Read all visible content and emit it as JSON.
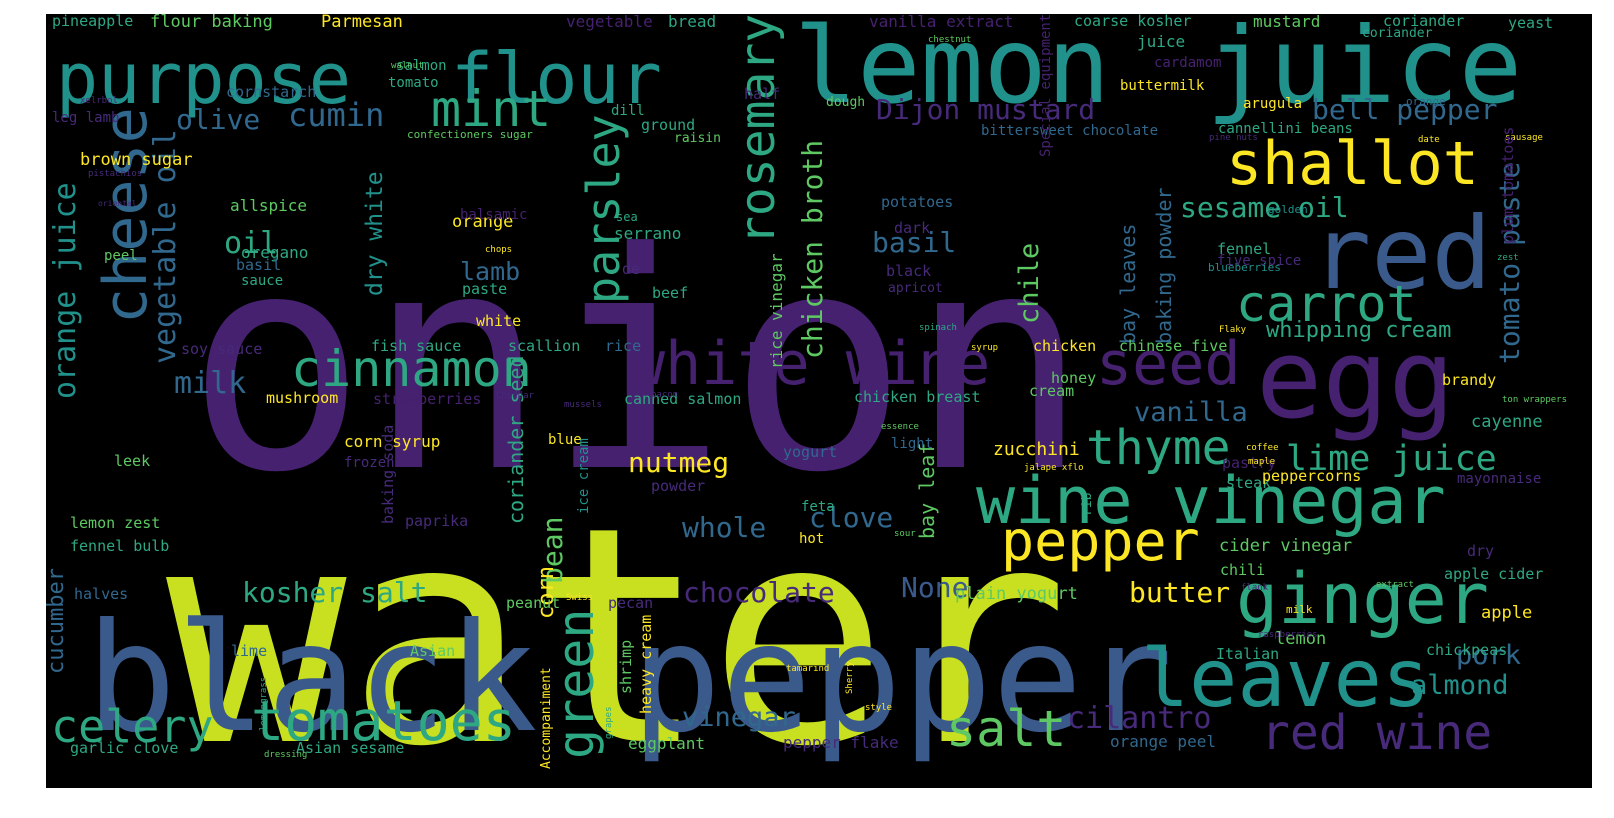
{
  "palette": {
    "background": "#000000",
    "purple": "#46216f",
    "violet": "#472a7a",
    "blue": "#3b5a8c",
    "teal_blue": "#31688e",
    "teal": "#21918c",
    "green_teal": "#2ea883",
    "green": "#5ec962",
    "lime": "#c8e020",
    "yellow": "#fde725"
  },
  "words": [
    "onion",
    "water",
    "black",
    "pepper",
    "lemon",
    "juice",
    "purpose",
    "flour",
    "red",
    "egg",
    "shallot",
    "leaves",
    "ginger",
    "wine vinegar",
    "white wine",
    "seed",
    "cheese",
    "carrot",
    "rosemary",
    "parsley",
    "mint",
    "cinnamon",
    "tomatoes",
    "celery",
    "green",
    "pepper",
    "salt",
    "red wine",
    "thyme",
    "lime juice",
    "orange juice",
    "vegetable oil",
    "chicken broth",
    "sesame oil",
    "tomato paste",
    "bell pepper",
    "Dijon mustard",
    "cumin",
    "olive",
    "oil",
    "milk",
    "basil",
    "lamb",
    "dry white",
    "chile",
    "kosher salt",
    "chocolate",
    "None",
    "butter",
    "clove",
    "whole",
    "nutmeg",
    "bean",
    "corn",
    "coriander seed",
    "cucumber",
    "vinegar",
    "cilantro",
    "almond",
    "pork",
    "vanilla",
    "whipping cream",
    "baking powder",
    "bay leaves",
    "rice vinegar",
    "bay leaf",
    "zucchini",
    "cider vinegar",
    "plain yogurt",
    "lemon",
    "apple",
    "cayenne",
    "brown sugar",
    "allspice",
    "oregano",
    "orange",
    "serrano",
    "potatoes",
    "dark",
    "fennel",
    "five spice",
    "corn syrup",
    "leek",
    "frozen",
    "lemon zest",
    "fennel bulb",
    "halves",
    "lime",
    "garlic clove",
    "Asian",
    "Asian sesame",
    "eggplant",
    "pepper flake",
    "orange peel",
    "fish sauce",
    "scallion",
    "soy sauce",
    "mushroom",
    "strawberries",
    "canned salmon",
    "chicken breast",
    "honey",
    "cream",
    "chicken",
    "chinese five",
    "rice",
    "white",
    "beef",
    "paste",
    "de",
    "black",
    "apricot",
    "basil",
    "powder",
    "feta",
    "yogurt",
    "light",
    "blue",
    "hot",
    "ice cream",
    "pecan",
    "peanut",
    "shrimp",
    "heavy cream",
    "Accompaniment",
    "chickpeas",
    "Italian",
    "apple cider",
    "chili",
    "dry",
    "steak",
    "pastry",
    "peppercorns",
    "mayonnaise",
    "brandy",
    "pineapple",
    "flour baking",
    "Parmesan",
    "vegetable",
    "bread",
    "vanilla extract",
    "coarse kosher",
    "mustard",
    "coriander",
    "yeast",
    "juice",
    "cardamom",
    "buttermilk",
    "salmon",
    "tomato",
    "half",
    "cornstarch",
    "dill",
    "ground",
    "raisin",
    "arugula",
    "cannellini beans",
    "bittersweet chocolate",
    "dough",
    "confectioners sugar",
    "leg lamb",
    "walnut",
    "chestnut",
    "xelrbol",
    "pistachios",
    "oriental",
    "peel",
    "sauce",
    "balsamic",
    "sea",
    "chops",
    "Special equipment",
    "blueberries",
    "golden",
    "pine nuts",
    "date",
    "sausage",
    "spinach",
    "syrup",
    "Flaky",
    "plum tomatoes",
    "zest",
    "ton wrappers",
    "coffee",
    "maple",
    "jalape xflo",
    "essence",
    "Cheddar",
    "mussels",
    "bacon",
    "rib",
    "sour",
    "extract",
    "flank",
    "raspberries",
    "Swiss",
    "tamarind",
    "Sherry",
    "style",
    "grapes",
    "lemongrass",
    "dressing",
    "baking soda",
    "paprika",
    "coriander",
    "orange",
    "milk"
  ]
}
